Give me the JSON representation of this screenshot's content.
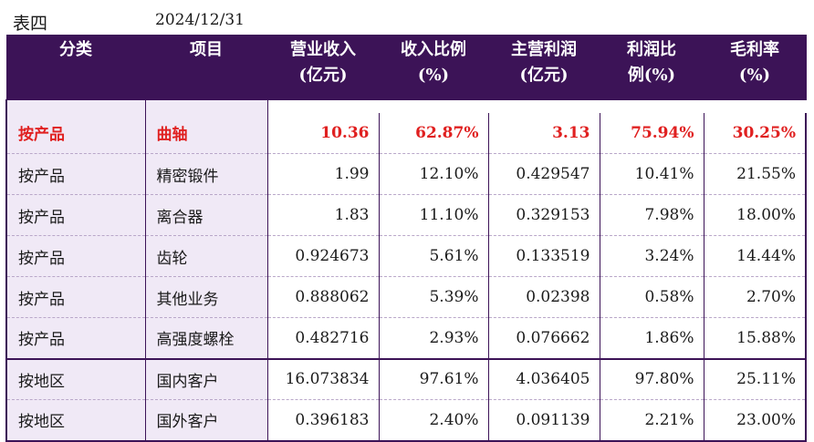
{
  "caption": {
    "label": "表四",
    "date": "2024/12/31"
  },
  "headers": [
    "分类",
    "项目",
    "营业收入\n(亿元)",
    "收入比例\n(%)",
    "主营利润\n(亿元)",
    "利润比\n例(%)",
    "毛利率\n(%)"
  ],
  "rows": [
    [
      "按产品",
      "曲轴",
      "10.36",
      "62.87%",
      "3.13",
      "75.94%",
      "30.25%"
    ],
    [
      "按产品",
      "精密锻件",
      "1.99",
      "12.10%",
      "0.429547",
      "10.41%",
      "21.55%"
    ],
    [
      "按产品",
      "离合器",
      "1.83",
      "11.10%",
      "0.329153",
      "7.98%",
      "18.00%"
    ],
    [
      "按产品",
      "齿轮",
      "0.924673",
      "5.61%",
      "0.133519",
      "3.24%",
      "14.44%"
    ],
    [
      "按产品",
      "其他业务",
      "0.888062",
      "5.39%",
      "0.02398",
      "0.58%",
      "2.70%"
    ],
    [
      "按产品",
      "高强度螺栓",
      "0.482716",
      "2.93%",
      "0.076662",
      "1.86%",
      "15.88%"
    ],
    [
      "按地区",
      "国内客户",
      "16.073834",
      "97.61%",
      "4.036405",
      "97.80%",
      "25.11%"
    ],
    [
      "按地区",
      "国外客户",
      "0.396183",
      "2.40%",
      "0.091139",
      "2.21%",
      "23.00%"
    ]
  ],
  "colors": {
    "header_bg": "#3c1357",
    "highlight_text": "#e02020",
    "label_bg": "#f0e9f6"
  }
}
